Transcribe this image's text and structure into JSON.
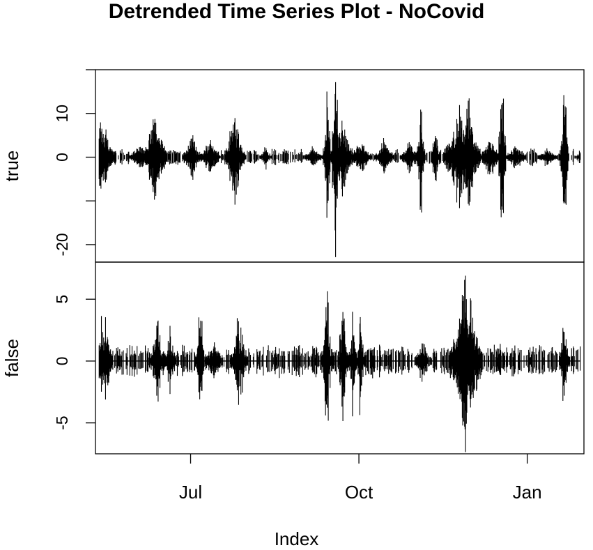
{
  "chart_data": {
    "type": "line",
    "style": "histogram-like vertical spikes",
    "title": "Detrended Time Series Plot - NoCovid",
    "xlabel": "Index",
    "xaxis": {
      "type": "date",
      "range": [
        "2020-05-10",
        "2021-02-01"
      ],
      "tick_labels": [
        "Jul",
        "Oct",
        "Jan"
      ],
      "tick_dates": [
        "2020-07-01",
        "2020-10-01",
        "2021-01-01"
      ]
    },
    "panels": [
      {
        "name": "true",
        "ylabel": "true",
        "ylim": [
          -24,
          20
        ],
        "yticks": [
          -20,
          -10,
          0,
          10
        ],
        "ytick_labels": [
          "-20",
          "",
          "0",
          "10"
        ],
        "events": [
          {
            "date": "2020-05-13",
            "amp": 10,
            "dur": 6
          },
          {
            "date": "2020-05-16",
            "amp": -8,
            "dur": 4
          },
          {
            "date": "2020-06-12",
            "amp": 16,
            "dur": 5
          },
          {
            "date": "2020-06-14",
            "amp": -8,
            "dur": 4
          },
          {
            "date": "2020-06-04",
            "amp": 4,
            "dur": 6
          },
          {
            "date": "2020-07-02",
            "amp": 6,
            "dur": 5
          },
          {
            "date": "2020-07-12",
            "amp": 6,
            "dur": 5
          },
          {
            "date": "2020-07-25",
            "amp": 15,
            "dur": 4
          },
          {
            "date": "2020-07-27",
            "amp": -7,
            "dur": 4
          },
          {
            "date": "2020-08-11",
            "amp": 3,
            "dur": 3
          },
          {
            "date": "2020-09-06",
            "amp": 3,
            "dur": 5
          },
          {
            "date": "2020-09-14",
            "amp": -16,
            "dur": 2
          },
          {
            "date": "2020-09-18",
            "amp": 24,
            "dur": 1
          },
          {
            "date": "2020-09-19",
            "amp": -23,
            "dur": 1
          },
          {
            "date": "2020-09-22",
            "amp": 12,
            "dur": 5
          },
          {
            "date": "2020-09-24",
            "amp": -8,
            "dur": 4
          },
          {
            "date": "2020-10-02",
            "amp": 5,
            "dur": 6
          },
          {
            "date": "2020-10-15",
            "amp": 5,
            "dur": 5
          },
          {
            "date": "2020-10-29",
            "amp": 5,
            "dur": 5
          },
          {
            "date": "2020-11-04",
            "amp": 14,
            "dur": 2
          },
          {
            "date": "2020-11-12",
            "amp": -10,
            "dur": 2
          },
          {
            "date": "2020-11-25",
            "amp": 14,
            "dur": 8
          },
          {
            "date": "2020-11-30",
            "amp": -15,
            "dur": 6
          },
          {
            "date": "2020-12-12",
            "amp": 6,
            "dur": 5
          },
          {
            "date": "2020-12-18",
            "amp": 17,
            "dur": 1
          },
          {
            "date": "2020-12-19",
            "amp": -14,
            "dur": 1
          },
          {
            "date": "2020-12-26",
            "amp": 4,
            "dur": 5
          },
          {
            "date": "2021-01-12",
            "amp": 3,
            "dur": 5
          },
          {
            "date": "2021-01-21",
            "amp": 18,
            "dur": 1
          },
          {
            "date": "2021-01-22",
            "amp": -16,
            "dur": 1
          },
          {
            "date": "2021-01-30",
            "amp": 2,
            "dur": 3
          }
        ]
      },
      {
        "name": "false",
        "ylabel": "false",
        "ylim": [
          -7.5,
          8
        ],
        "yticks": [
          -5,
          0,
          5
        ],
        "ytick_labels": [
          "-5",
          "0",
          "5"
        ],
        "events": [
          {
            "date": "2020-05-13",
            "amp": 4,
            "dur": 5
          },
          {
            "date": "2020-05-16",
            "amp": -4,
            "dur": 3
          },
          {
            "date": "2020-06-13",
            "amp": 4,
            "dur": 4
          },
          {
            "date": "2020-06-20",
            "amp": -3,
            "dur": 3
          },
          {
            "date": "2020-07-06",
            "amp": 4,
            "dur": 2
          },
          {
            "date": "2020-07-07",
            "amp": -4,
            "dur": 2
          },
          {
            "date": "2020-07-14",
            "amp": 2,
            "dur": 6
          },
          {
            "date": "2020-07-27",
            "amp": 4,
            "dur": 4
          },
          {
            "date": "2020-07-29",
            "amp": -3,
            "dur": 3
          },
          {
            "date": "2020-09-13",
            "amp": 6,
            "dur": 2
          },
          {
            "date": "2020-09-14",
            "amp": -6,
            "dur": 2
          },
          {
            "date": "2020-09-22",
            "amp": 6,
            "dur": 2
          },
          {
            "date": "2020-09-23",
            "amp": -5,
            "dur": 2
          },
          {
            "date": "2020-09-28",
            "amp": 5,
            "dur": 2
          },
          {
            "date": "2020-10-02",
            "amp": -5,
            "dur": 2
          },
          {
            "date": "2020-11-05",
            "amp": 2,
            "dur": 5
          },
          {
            "date": "2020-11-28",
            "amp": 8,
            "dur": 8
          },
          {
            "date": "2020-12-01",
            "amp": -7,
            "dur": 6
          },
          {
            "date": "2021-01-21",
            "amp": 4,
            "dur": 2
          },
          {
            "date": "2021-01-22",
            "amp": -3,
            "dur": 2
          }
        ]
      }
    ],
    "series_color": "#000000"
  }
}
